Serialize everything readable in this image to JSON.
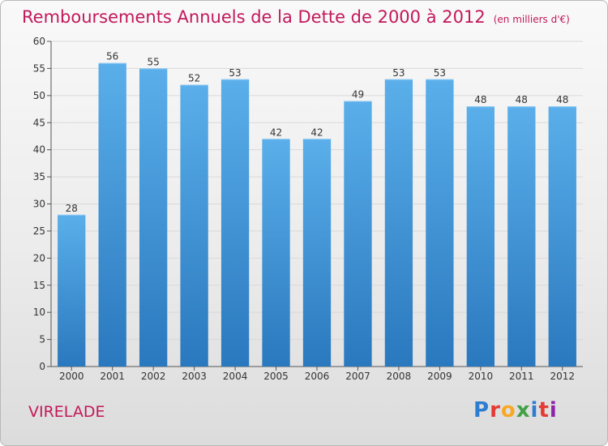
{
  "title": "Remboursements Annuels de la Dette de 2000 à 2012",
  "unit_note": "(en milliers d'€)",
  "commune": "VIRELADE",
  "brand": {
    "letters": [
      "P",
      "r",
      "o",
      "x",
      "i",
      "t",
      "i"
    ],
    "colors": [
      "#2e7dd1",
      "#e53935",
      "#f9a825",
      "#43a047",
      "#2e7dd1",
      "#e53935",
      "#8e24aa"
    ]
  },
  "colors": {
    "title": "#c2185b",
    "bar_top": "#5aafea",
    "bar_bottom": "#2a78be",
    "grid": "#d9d9d9"
  },
  "chart_data": {
    "type": "bar",
    "categories": [
      "2000",
      "2001",
      "2002",
      "2003",
      "2004",
      "2005",
      "2006",
      "2007",
      "2008",
      "2009",
      "2010",
      "2011",
      "2012"
    ],
    "values": [
      28,
      56,
      55,
      52,
      53,
      42,
      42,
      49,
      53,
      53,
      48,
      48,
      48
    ],
    "ylim": [
      0,
      60
    ],
    "yticks": [
      0,
      5,
      10,
      15,
      20,
      25,
      30,
      35,
      40,
      45,
      50,
      55,
      60
    ],
    "grid": true,
    "legend": "none"
  }
}
